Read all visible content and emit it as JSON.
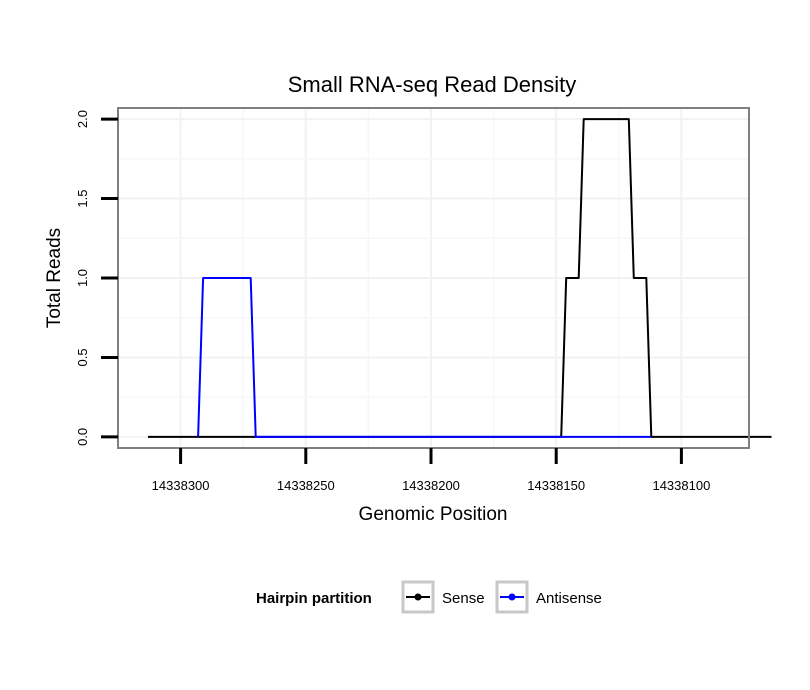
{
  "chart_data": {
    "type": "line",
    "title": "Small RNA-seq Read Density",
    "xlabel": "Genomic Position",
    "ylabel": "Total Reads",
    "x_reversed": true,
    "xlim": [
      14338325,
      14338073
    ],
    "ylim": [
      -0.07,
      2.07
    ],
    "x_ticks": [
      14338300,
      14338250,
      14338200,
      14338150,
      14338100
    ],
    "x_tick_labels": [
      "14338300",
      "14338250",
      "14338200",
      "14338150",
      "14338100"
    ],
    "y_ticks": [
      0,
      0.5,
      1,
      1.5,
      2
    ],
    "y_tick_labels": [
      "0.0",
      "0.5",
      "1.0",
      "1.5",
      "2.0"
    ],
    "grid": true,
    "legend": {
      "title": "Hairpin partition",
      "position": "bottom"
    },
    "series": [
      {
        "name": "Sense",
        "color": "#000000",
        "x": [
          14338313,
          14338148,
          14338146,
          14338141,
          14338139,
          14338121,
          14338119,
          14338114,
          14338112,
          14338064
        ],
        "y": [
          0,
          0,
          1,
          1,
          2,
          2,
          1,
          1,
          0,
          0
        ]
      },
      {
        "name": "Antisense",
        "color": "#0000ff",
        "x": [
          14338293,
          14338291,
          14338272,
          14338270,
          14338148,
          14338112
        ],
        "y": [
          0,
          1,
          1,
          0,
          0,
          0
        ]
      }
    ]
  }
}
